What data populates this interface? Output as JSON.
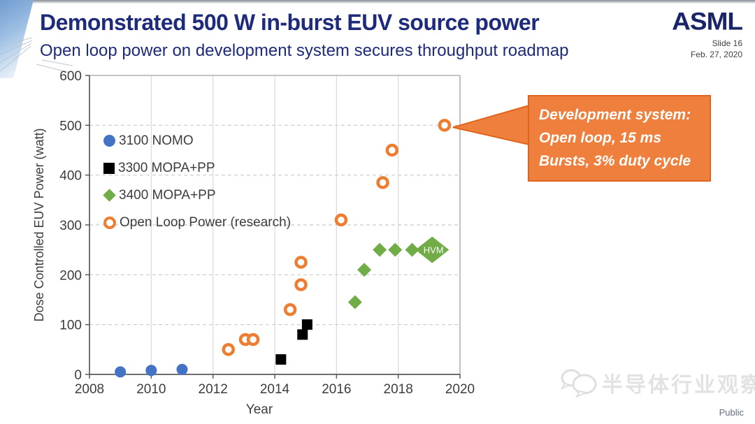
{
  "header": {
    "title": "Demonstrated 500 W in-burst EUV source power",
    "subtitle": "Open loop power on development system secures throughput roadmap"
  },
  "brand": {
    "name": "ASML",
    "slide_number": "Slide 16",
    "date": "Feb. 27, 2020"
  },
  "chart_data": {
    "type": "scatter",
    "xlabel": "Year",
    "ylabel": "Dose Controlled EUV Power (watt)",
    "xlim": [
      2008,
      2020
    ],
    "ylim": [
      0,
      600
    ],
    "x_ticks": [
      2008,
      2010,
      2012,
      2014,
      2016,
      2018,
      2020
    ],
    "y_ticks": [
      0,
      100,
      200,
      300,
      400,
      500,
      600
    ],
    "grid": {
      "vertical": "solid",
      "horizontal": "dashed"
    },
    "legend_position": "upper-left-inside",
    "series": [
      {
        "name": "3100 NOMO",
        "marker": "circle",
        "color": "#4472C4",
        "points": [
          [
            2009,
            5
          ],
          [
            2010,
            8
          ],
          [
            2011,
            10
          ]
        ]
      },
      {
        "name": "3300 MOPA+PP",
        "marker": "square",
        "color": "#000000",
        "points": [
          [
            2014.2,
            30
          ],
          [
            2014.9,
            80
          ],
          [
            2015.05,
            100
          ]
        ]
      },
      {
        "name": "3400 MOPA+PP",
        "marker": "diamond",
        "color": "#70AD47",
        "points": [
          [
            2016.6,
            145
          ],
          [
            2016.9,
            210
          ],
          [
            2017.4,
            250
          ],
          [
            2017.9,
            250
          ],
          [
            2018.45,
            250
          ]
        ],
        "special_point": {
          "x": 2019.1,
          "y": 250,
          "label": "HVM"
        }
      },
      {
        "name": "Open Loop Power (research)",
        "marker": "open-circle",
        "color": "#ED7D31",
        "points": [
          [
            2012.5,
            50
          ],
          [
            2013.05,
            70
          ],
          [
            2013.3,
            70
          ],
          [
            2014.5,
            130
          ],
          [
            2014.85,
            180
          ],
          [
            2014.85,
            225
          ],
          [
            2016.15,
            310
          ],
          [
            2017.5,
            385
          ],
          [
            2017.8,
            450
          ],
          [
            2019.5,
            500
          ]
        ]
      }
    ],
    "annotation": {
      "lines": [
        "Development system:",
        "Open loop, 15 ms",
        "Bursts, 3% duty cycle"
      ],
      "points_to": [
        2019.5,
        500
      ],
      "fill": "#EF7F3D",
      "border": "#E0651C"
    }
  },
  "watermark": {
    "text": "半导体行业观察",
    "icon": "chat-bubbles-logo"
  },
  "footer": {
    "classification": "Public"
  }
}
